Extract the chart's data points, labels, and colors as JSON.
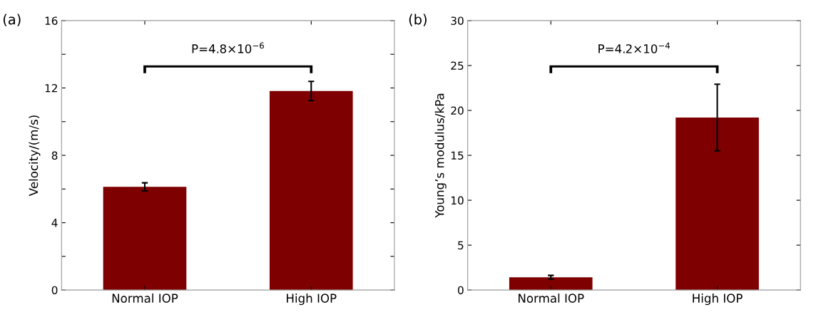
{
  "chart_data": [
    {
      "type": "bar",
      "title": "(a)",
      "ylabel": "Velocity/(m/s)",
      "categories": [
        "Normal IOP",
        "High IOP"
      ],
      "values": [
        6.13,
        11.82
      ],
      "errors": [
        0.24,
        0.57
      ],
      "color": "#7f0000",
      "ylim": [
        0,
        16
      ],
      "yticks": [
        0,
        {
          "value": 2,
          "label": null
        },
        4,
        {
          "value": 6,
          "label": null
        },
        8,
        {
          "value": 10,
          "label": null
        },
        12,
        {
          "value": 14,
          "label": null
        },
        16
      ],
      "annotations": [
        "P=4.8×10$^{−6}$"
      ],
      "grid": false,
      "legend": false
    },
    {
      "type": "bar",
      "title": "(b)",
      "ylabel": "Young’s modulus/kPa",
      "categories": [
        "Normal IOP",
        "High IOP"
      ],
      "values": [
        1.43,
        19.21
      ],
      "errors": [
        0.2,
        3.7
      ],
      "color": "#7f0000",
      "ylim": [
        0,
        30
      ],
      "yticks": [
        0,
        5,
        10,
        15,
        20,
        25,
        30
      ],
      "annotations": [
        "P=4.2×10$^{−4}$"
      ],
      "grid": false,
      "legend": false
    }
  ]
}
